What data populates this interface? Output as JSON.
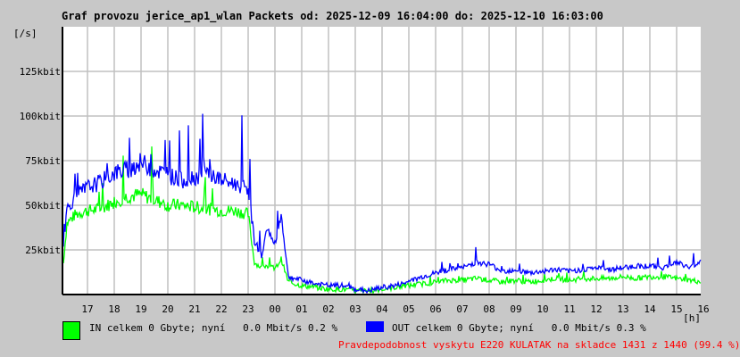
{
  "title": "Graf provozu jerice_ap1_wlan Packets od: 2025-12-09 16:04:00 do: 2025-12-10 16:03:00",
  "chart_data": {
    "type": "line",
    "title": "Graf provozu jerice_ap1_wlan Packets od: 2025-12-09 16:04:00 do: 2025-12-10 16:03:00",
    "ylabel": "[/s]",
    "xlabel": "[h]",
    "ylim": [
      0,
      150
    ],
    "yunit": "kbit",
    "yticks": [
      25,
      50,
      75,
      100,
      125
    ],
    "ytick_labels": [
      "25kbit",
      "50kbit",
      "75kbit",
      "100kbit",
      "125kbit"
    ],
    "xtick_labels": [
      "17",
      "18",
      "19",
      "20",
      "21",
      "22",
      "23",
      "00",
      "01",
      "02",
      "03",
      "04",
      "05",
      "06",
      "07",
      "08",
      "09",
      "10",
      "11",
      "12",
      "13",
      "14",
      "15",
      "16"
    ],
    "grid": true,
    "x": [
      "16:04",
      "16:14",
      "16:34",
      "17:00",
      "17:30",
      "18:00",
      "18:30",
      "19:00",
      "19:30",
      "20:00",
      "20:30",
      "21:00",
      "21:30",
      "22:00",
      "22:30",
      "23:00",
      "23:14",
      "23:30",
      "23:44",
      "00:00",
      "00:14",
      "00:30",
      "01:00",
      "01:30",
      "02:00",
      "02:30",
      "03:00",
      "03:30",
      "04:00",
      "04:30",
      "05:00",
      "05:30",
      "06:00",
      "06:30",
      "07:00",
      "07:30",
      "08:00",
      "08:30",
      "09:00",
      "09:30",
      "10:00",
      "10:30",
      "11:00",
      "11:30",
      "12:00",
      "12:30",
      "13:00",
      "13:30",
      "14:00",
      "14:30",
      "15:00",
      "15:30",
      "16:03"
    ],
    "series": [
      {
        "name": "IN",
        "color": "#00ff00",
        "values": [
          12,
          40,
          45,
          47,
          48,
          52,
          55,
          56,
          53,
          50,
          50,
          49,
          48,
          47,
          47,
          45,
          18,
          15,
          16,
          14,
          20,
          7,
          5,
          4,
          3,
          3,
          2,
          2,
          3,
          4,
          5,
          6,
          7,
          8,
          8,
          9,
          8,
          7,
          8,
          7,
          8,
          9,
          8,
          9,
          9,
          9,
          10,
          9,
          10,
          10,
          9,
          8,
          7
        ]
      },
      {
        "name": "OUT",
        "color": "#0000ff",
        "values": [
          20,
          48,
          55,
          60,
          63,
          68,
          70,
          74,
          70,
          67,
          64,
          66,
          68,
          64,
          62,
          60,
          30,
          22,
          38,
          26,
          45,
          10,
          8,
          6,
          5,
          5,
          3,
          2,
          4,
          5,
          7,
          10,
          12,
          14,
          15,
          18,
          17,
          13,
          14,
          12,
          13,
          14,
          13,
          14,
          15,
          14,
          15,
          16,
          16,
          15,
          18,
          15,
          20
        ]
      }
    ]
  },
  "legend": {
    "in_text": "IN celkem 0 Gbyte; nyní   0.0 Mbit/s 0.2 %",
    "out_text": "OUT celkem 0 Gbyte; nyní   0.0 Mbit/s 0.3 %",
    "in_color": "#00ff00",
    "out_color": "#0000ff"
  },
  "footer": {
    "text": "Pravdepodobnost vyskytu E220 KULATAK na skladce 1431 z 1440 (99.4 %)",
    "color": "#ff0000"
  }
}
